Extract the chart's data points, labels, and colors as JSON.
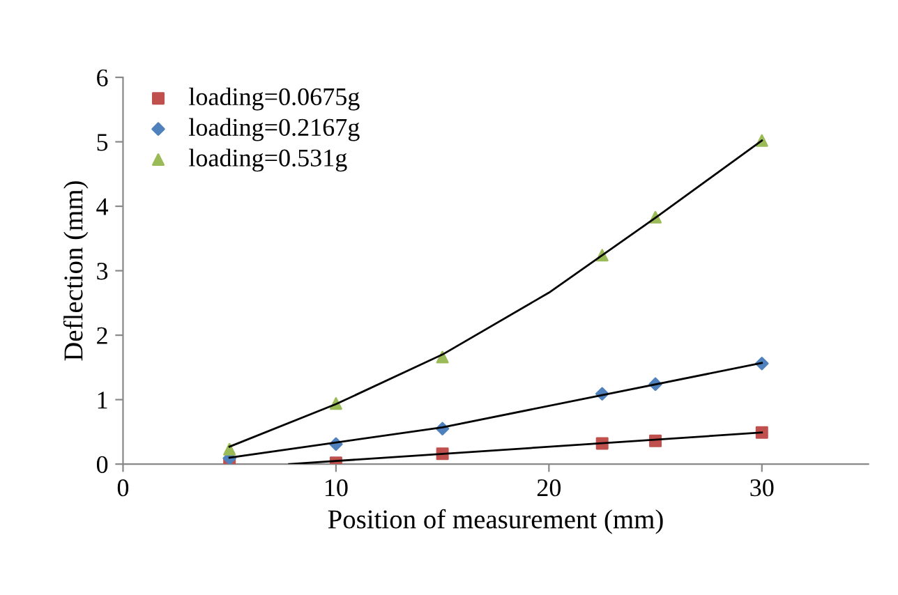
{
  "chart_data": {
    "type": "scatter",
    "xlabel": "Position of measurement (mm)",
    "ylabel": "Deflection (mm)",
    "xlim": [
      0,
      35
    ],
    "xticks": [
      0,
      10,
      20,
      30
    ],
    "ylim": [
      0,
      6
    ],
    "yticks": [
      0,
      1,
      2,
      3,
      4,
      5,
      6
    ],
    "grid": false,
    "legend": "top left",
    "series": [
      {
        "name": "loading=0.0675g",
        "color": "#c0504d",
        "marker": "square",
        "x": [
          5,
          10,
          15,
          22.5,
          25,
          30
        ],
        "values": [
          0.0,
          0.02,
          0.16,
          0.32,
          0.36,
          0.49
        ]
      },
      {
        "name": "loading=0.2167g",
        "color": "#4f81bd",
        "marker": "diamond",
        "x": [
          5,
          10,
          15,
          22.5,
          25,
          30
        ],
        "values": [
          0.09,
          0.31,
          0.55,
          1.09,
          1.24,
          1.56
        ]
      },
      {
        "name": "loading=0.531g",
        "color": "#9bbb59",
        "marker": "triangle",
        "x": [
          5,
          10,
          15,
          22.5,
          25,
          30
        ],
        "values": [
          0.23,
          0.94,
          1.66,
          3.24,
          3.83,
          5.02
        ]
      },
      {
        "type": "line",
        "color": "#000000",
        "marker": "none",
        "x": [
          7.8,
          30
        ],
        "values": [
          0,
          0.49
        ]
      },
      {
        "type": "line",
        "color": "#000000",
        "marker": "none",
        "x": [
          5,
          15,
          30
        ],
        "values": [
          0.1,
          0.57,
          1.57
        ]
      },
      {
        "type": "line",
        "color": "#000000",
        "marker": "none",
        "x": [
          5,
          10,
          15,
          20,
          25,
          30
        ],
        "values": [
          0.27,
          0.93,
          1.7,
          2.66,
          3.82,
          5.02
        ]
      }
    ]
  }
}
